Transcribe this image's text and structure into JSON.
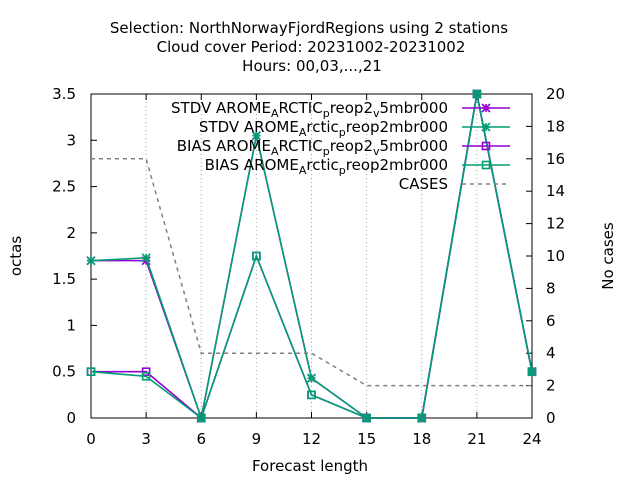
{
  "chart_data": {
    "type": "line",
    "title_lines": [
      "Selection: NorthNorwayFjordRegions using     2 stations",
      "Cloud cover   Period: 20231002-20231002",
      "Hours:  00,03,...,21"
    ],
    "xlabel": "Forecast length",
    "ylabel": "octas",
    "y2label": "No cases",
    "x_ticks": [
      0,
      3,
      6,
      9,
      12,
      15,
      18,
      21,
      24
    ],
    "y_ticks": [
      "0",
      "0.5",
      "1",
      "1.5",
      "2",
      "2.5",
      "3",
      "3.5"
    ],
    "y2_ticks": [
      "0",
      "2",
      "4",
      "6",
      "8",
      "10",
      "12",
      "14",
      "16",
      "18",
      "20"
    ],
    "xlim": [
      0,
      24
    ],
    "ylim": [
      0,
      3.5
    ],
    "y2lim": [
      0,
      20
    ],
    "grid": true,
    "legend_position": "top-right",
    "series": [
      {
        "name": "STDV AROME_ARCTIC_preop2_v5mbr000",
        "legend": {
          "base1": "STDV AROME",
          "sub1": "A",
          "base2": "RCTIC",
          "sub2": "p",
          "base3": "reop2",
          "sub3": "v",
          "base4": "5mbr000"
        },
        "color": "#9400d3",
        "marker": "star",
        "axis": "y",
        "x": [
          0,
          3,
          6,
          9,
          12,
          15,
          18,
          21,
          24
        ],
        "y": [
          1.7,
          1.7,
          0.0,
          3.05,
          0.43,
          0.0,
          0.0,
          3.5,
          0.5
        ]
      },
      {
        "name": "STDV AROME_Arctic_preop2mbr000",
        "legend": {
          "base1": "STDV AROME",
          "sub1": "A",
          "base2": "rctic",
          "sub2": "p",
          "base3": "reop2mbr000",
          "sub3": "",
          "base4": ""
        },
        "color": "#009e73",
        "marker": "star",
        "axis": "y",
        "x": [
          0,
          3,
          6,
          9,
          12,
          15,
          18,
          21,
          24
        ],
        "y": [
          1.7,
          1.73,
          0.0,
          3.05,
          0.43,
          0.0,
          0.0,
          3.5,
          0.5
        ]
      },
      {
        "name": "BIAS AROME_ARCTIC_preop2_v5mbr000",
        "legend": {
          "base1": "BIAS AROME",
          "sub1": "A",
          "base2": "RCTIC",
          "sub2": "p",
          "base3": "reop2",
          "sub3": "v",
          "base4": "5mbr000"
        },
        "color": "#9400d3",
        "marker": "square",
        "axis": "y",
        "x": [
          0,
          3,
          6,
          9,
          12,
          15,
          18,
          21,
          24
        ],
        "y": [
          0.5,
          0.5,
          0.0,
          1.75,
          0.25,
          0.0,
          0.0,
          3.5,
          0.5
        ]
      },
      {
        "name": "BIAS AROME_Arctic_preop2mbr000",
        "legend": {
          "base1": "BIAS AROME",
          "sub1": "A",
          "base2": "rctic",
          "sub2": "p",
          "base3": "reop2mbr000",
          "sub3": "",
          "base4": ""
        },
        "color": "#009e73",
        "marker": "square",
        "axis": "y",
        "x": [
          0,
          3,
          6,
          9,
          12,
          15,
          18,
          21,
          24
        ],
        "y": [
          0.5,
          0.45,
          0.0,
          1.75,
          0.25,
          0.0,
          0.0,
          3.5,
          0.5
        ]
      },
      {
        "name": "CASES",
        "legend": {
          "base1": "CASES",
          "sub1": "",
          "base2": "",
          "sub2": "",
          "base3": "",
          "sub3": "",
          "base4": ""
        },
        "color": "#808080",
        "marker": "none",
        "dashed": true,
        "axis": "y2",
        "x": [
          0,
          3,
          6,
          9,
          12,
          15,
          18,
          21,
          24
        ],
        "y": [
          16,
          16,
          4,
          4,
          4,
          2,
          2,
          2,
          2
        ]
      }
    ]
  }
}
